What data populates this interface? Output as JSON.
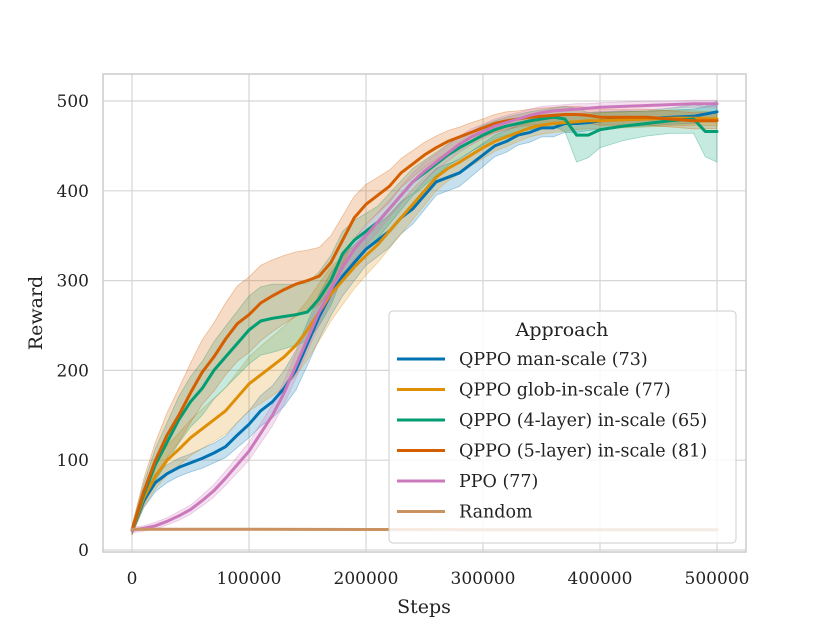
{
  "chart_data": {
    "type": "line",
    "title": "",
    "xlabel": "Steps",
    "ylabel": "Reward",
    "xlim": [
      -25000,
      525000
    ],
    "ylim": [
      -5,
      530
    ],
    "xticks": [
      0,
      100000,
      200000,
      300000,
      400000,
      500000
    ],
    "yticks": [
      0,
      100,
      200,
      300,
      400,
      500
    ],
    "grid": true,
    "legend": {
      "title": "Approach",
      "placement": "lower-right"
    },
    "series": [
      {
        "name": "QPPO man-scale (73)",
        "color": "#0173b2",
        "x": [
          0,
          10000,
          20000,
          30000,
          40000,
          50000,
          60000,
          70000,
          80000,
          90000,
          100000,
          110000,
          120000,
          130000,
          140000,
          150000,
          160000,
          170000,
          180000,
          190000,
          200000,
          210000,
          220000,
          230000,
          240000,
          250000,
          260000,
          270000,
          280000,
          290000,
          300000,
          310000,
          320000,
          330000,
          340000,
          350000,
          360000,
          370000,
          380000,
          390000,
          400000,
          420000,
          440000,
          460000,
          480000,
          500000
        ],
        "y": [
          22,
          55,
          75,
          85,
          92,
          97,
          102,
          108,
          115,
          128,
          140,
          155,
          165,
          180,
          200,
          230,
          260,
          285,
          305,
          320,
          335,
          345,
          355,
          370,
          380,
          395,
          410,
          415,
          420,
          430,
          440,
          450,
          455,
          462,
          465,
          470,
          470,
          475,
          475,
          476,
          478,
          480,
          480,
          482,
          483,
          488
        ],
        "band": [
          5,
          8,
          10,
          10,
          10,
          10,
          11,
          11,
          12,
          14,
          15,
          17,
          18,
          20,
          22,
          24,
          25,
          24,
          22,
          20,
          18,
          18,
          18,
          18,
          17,
          16,
          15,
          15,
          15,
          14,
          13,
          12,
          12,
          11,
          11,
          10,
          10,
          10,
          10,
          9,
          9,
          9,
          8,
          8,
          8,
          8
        ]
      },
      {
        "name": "QPPO glob-in-scale (77)",
        "color": "#de8f05",
        "x": [
          0,
          10000,
          20000,
          30000,
          40000,
          50000,
          60000,
          70000,
          80000,
          90000,
          100000,
          110000,
          120000,
          130000,
          140000,
          150000,
          160000,
          170000,
          180000,
          190000,
          200000,
          210000,
          220000,
          230000,
          240000,
          250000,
          260000,
          270000,
          280000,
          290000,
          300000,
          310000,
          320000,
          330000,
          340000,
          350000,
          360000,
          370000,
          380000,
          390000,
          400000,
          420000,
          440000,
          460000,
          480000,
          500000
        ],
        "y": [
          22,
          58,
          82,
          100,
          112,
          125,
          135,
          145,
          155,
          170,
          185,
          195,
          205,
          215,
          228,
          245,
          265,
          285,
          300,
          315,
          328,
          340,
          355,
          370,
          385,
          400,
          415,
          425,
          432,
          440,
          448,
          455,
          460,
          465,
          470,
          473,
          475,
          476,
          477,
          478,
          478,
          479,
          480,
          481,
          481,
          480
        ],
        "band": [
          5,
          10,
          14,
          16,
          18,
          20,
          22,
          24,
          26,
          28,
          30,
          32,
          33,
          34,
          34,
          33,
          32,
          30,
          27,
          24,
          22,
          20,
          19,
          18,
          17,
          16,
          15,
          14,
          13,
          12,
          12,
          11,
          11,
          10,
          10,
          10,
          10,
          10,
          9,
          9,
          9,
          9,
          9,
          9,
          8,
          8
        ]
      },
      {
        "name": "QPPO (4-layer) in-scale (65)",
        "color": "#029e73",
        "x": [
          0,
          10000,
          20000,
          30000,
          40000,
          50000,
          60000,
          70000,
          80000,
          90000,
          100000,
          110000,
          120000,
          130000,
          140000,
          150000,
          160000,
          170000,
          180000,
          190000,
          200000,
          210000,
          220000,
          230000,
          240000,
          250000,
          260000,
          270000,
          280000,
          290000,
          300000,
          310000,
          320000,
          330000,
          340000,
          350000,
          360000,
          370000,
          380000,
          390000,
          400000,
          420000,
          440000,
          460000,
          480000,
          490000,
          500000
        ],
        "y": [
          22,
          62,
          95,
          120,
          145,
          165,
          180,
          200,
          215,
          230,
          245,
          255,
          258,
          260,
          262,
          265,
          280,
          300,
          330,
          345,
          355,
          365,
          380,
          395,
          410,
          420,
          430,
          440,
          448,
          455,
          462,
          468,
          472,
          475,
          478,
          480,
          482,
          480,
          462,
          462,
          468,
          472,
          475,
          478,
          480,
          466,
          466
        ],
        "band": [
          5,
          12,
          18,
          22,
          26,
          28,
          30,
          32,
          34,
          36,
          38,
          38,
          38,
          36,
          34,
          32,
          30,
          28,
          25,
          22,
          20,
          18,
          17,
          16,
          15,
          14,
          13,
          12,
          12,
          11,
          11,
          10,
          10,
          10,
          10,
          10,
          10,
          14,
          30,
          25,
          20,
          16,
          14,
          14,
          16,
          28,
          34
        ]
      },
      {
        "name": "QPPO (5-layer) in-scale (81)",
        "color": "#d55e00",
        "x": [
          0,
          10000,
          20000,
          30000,
          40000,
          50000,
          60000,
          70000,
          80000,
          90000,
          100000,
          110000,
          120000,
          130000,
          140000,
          150000,
          160000,
          170000,
          180000,
          190000,
          200000,
          210000,
          220000,
          230000,
          240000,
          250000,
          260000,
          270000,
          280000,
          290000,
          300000,
          310000,
          320000,
          330000,
          340000,
          350000,
          360000,
          370000,
          380000,
          390000,
          400000,
          420000,
          440000,
          460000,
          480000,
          500000
        ],
        "y": [
          22,
          65,
          100,
          128,
          150,
          175,
          198,
          215,
          235,
          252,
          262,
          275,
          283,
          290,
          296,
          300,
          305,
          320,
          345,
          370,
          385,
          395,
          405,
          420,
          430,
          440,
          448,
          455,
          460,
          465,
          470,
          475,
          478,
          480,
          482,
          483,
          484,
          485,
          485,
          484,
          482,
          482,
          482,
          480,
          478,
          478
        ],
        "band": [
          5,
          14,
          20,
          25,
          30,
          33,
          36,
          38,
          40,
          42,
          42,
          42,
          40,
          38,
          36,
          34,
          32,
          30,
          27,
          24,
          22,
          20,
          18,
          16,
          15,
          14,
          13,
          12,
          11,
          11,
          10,
          10,
          10,
          9,
          9,
          9,
          9,
          9,
          9,
          9,
          9,
          9,
          9,
          9,
          9,
          9
        ]
      },
      {
        "name": "PPO (77)",
        "color": "#cc78bc",
        "x": [
          0,
          10000,
          20000,
          30000,
          40000,
          50000,
          60000,
          70000,
          80000,
          90000,
          100000,
          110000,
          120000,
          130000,
          140000,
          150000,
          160000,
          170000,
          180000,
          190000,
          200000,
          210000,
          220000,
          230000,
          240000,
          250000,
          260000,
          270000,
          280000,
          290000,
          300000,
          310000,
          320000,
          330000,
          340000,
          350000,
          360000,
          370000,
          380000,
          390000,
          400000,
          420000,
          440000,
          460000,
          480000,
          500000
        ],
        "y": [
          22,
          24,
          27,
          32,
          38,
          45,
          55,
          66,
          80,
          95,
          110,
          130,
          150,
          175,
          205,
          235,
          265,
          290,
          315,
          335,
          350,
          365,
          380,
          395,
          410,
          422,
          432,
          442,
          452,
          460,
          466,
          472,
          476,
          480,
          484,
          487,
          489,
          490,
          491,
          492,
          493,
          494,
          495,
          496,
          497,
          497
        ],
        "band": [
          3,
          3,
          4,
          4,
          5,
          5,
          6,
          7,
          8,
          9,
          10,
          11,
          12,
          13,
          14,
          14,
          14,
          13,
          12,
          12,
          11,
          11,
          10,
          10,
          10,
          10,
          9,
          9,
          9,
          9,
          8,
          8,
          8,
          7,
          7,
          7,
          6,
          6,
          6,
          5,
          5,
          5,
          5,
          4,
          4,
          4
        ]
      },
      {
        "name": "Random",
        "color": "#ca9161",
        "x": [
          0,
          100000,
          200000,
          300000,
          400000,
          500000
        ],
        "y": [
          23,
          23,
          22.8,
          22.6,
          22.5,
          22.5
        ],
        "band": [
          1,
          1,
          1,
          1,
          1,
          1
        ]
      }
    ]
  }
}
